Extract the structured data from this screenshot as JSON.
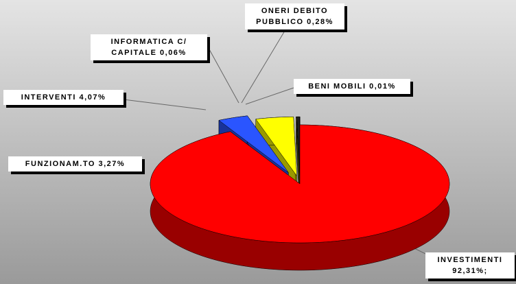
{
  "chart_data": {
    "type": "pie",
    "categories": [
      "INVESTIMENTI",
      "FUNZIONAM.TO",
      "INTERVENTI",
      "INFORMATICA C/ CAPITALE",
      "ONERI DEBITO PUBBLICO",
      "BENI MOBILI"
    ],
    "values": [
      92.31,
      3.27,
      4.07,
      0.06,
      0.28,
      0.01
    ],
    "value_labels": [
      "92,31%;",
      "3,27%",
      "4,07%",
      "0,06%",
      "0,28%",
      "0,01%"
    ],
    "colors": [
      "#ff0000",
      "#2a55ff",
      "#ffff00",
      "#8a8a20",
      "#202020",
      "#f0f0f0"
    ]
  }
}
